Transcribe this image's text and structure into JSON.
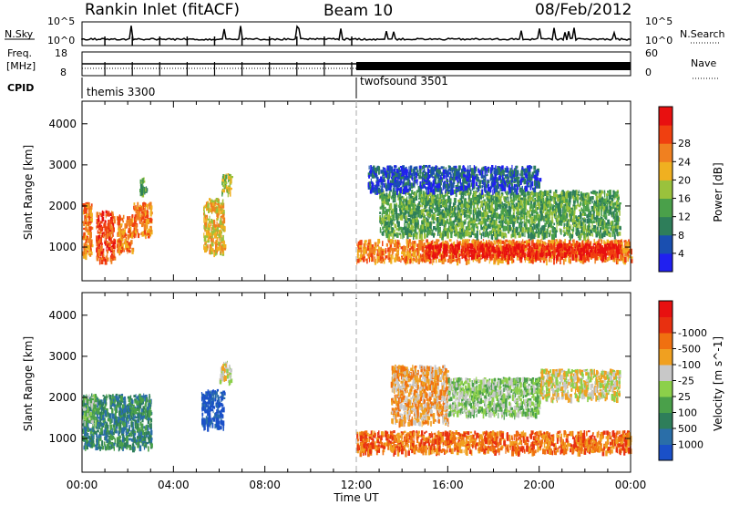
{
  "header": {
    "title": "Rankin Inlet (fitACF)",
    "beam": "Beam 10",
    "date": "08/Feb/2012"
  },
  "top_panels": {
    "nsky_label": "N.Sky",
    "nsearch_label": "N.Search",
    "nsky_ticks": [
      "10^5",
      "10^0"
    ],
    "nsearch_ticks": [
      "10^5",
      "10^0"
    ],
    "freq_label_1": "Freq.",
    "freq_label_2": "[MHz]",
    "freq_ticks": [
      "18",
      "8"
    ],
    "nave_label": "Nave",
    "nave_ticks": [
      "60",
      "0"
    ],
    "cpid_label": "CPID",
    "cpid_segments": [
      {
        "name": "themis 3300",
        "start_hour": 0,
        "end_hour": 12
      },
      {
        "name": "twofsound 3501",
        "start_hour": 12,
        "end_hour": 24
      }
    ]
  },
  "chart_data": [
    {
      "type": "heatmap",
      "title": "",
      "quantity": "Power",
      "ylabel": "Slant Range [km]",
      "xlabel": "",
      "ylim": [
        180,
        4550
      ],
      "xlim": [
        0,
        24
      ],
      "yticks": [
        1000,
        2000,
        3000,
        4000
      ],
      "colorbar": {
        "label": "Power [dB]",
        "ticks": [
          "4",
          "8",
          "12",
          "16",
          "20",
          "24",
          "28"
        ],
        "colors": [
          "#2020f0",
          "#1a4fb0",
          "#2e7e5a",
          "#4aa04a",
          "#9ac23c",
          "#f0b020",
          "#f08020",
          "#f04010",
          "#e81010"
        ]
      },
      "regions": [
        {
          "x": [
            0.0,
            0.4
          ],
          "y": [
            800,
            2100
          ],
          "level": 6
        },
        {
          "x": [
            0.6,
            1.4
          ],
          "y": [
            700,
            1900
          ],
          "level": 7
        },
        {
          "x": [
            1.5,
            2.2
          ],
          "y": [
            900,
            1800
          ],
          "level": 6
        },
        {
          "x": [
            2.2,
            3.0
          ],
          "y": [
            1300,
            2100
          ],
          "level": 6
        },
        {
          "x": [
            2.5,
            2.8
          ],
          "y": [
            2300,
            2700
          ],
          "level": 3
        },
        {
          "x": [
            5.3,
            6.2
          ],
          "y": [
            900,
            2200
          ],
          "level": 5
        },
        {
          "x": [
            6.1,
            6.5
          ],
          "y": [
            2300,
            2800
          ],
          "level": 4
        },
        {
          "x": [
            12.0,
            24.0
          ],
          "y": [
            700,
            1200
          ],
          "level": 6
        },
        {
          "x": [
            15.0,
            23.5
          ],
          "y": [
            800,
            1100
          ],
          "level": 8
        },
        {
          "x": [
            13.0,
            23.5
          ],
          "y": [
            1300,
            2400
          ],
          "level": 3
        },
        {
          "x": [
            12.5,
            20.0
          ],
          "y": [
            2400,
            3000
          ],
          "level": 1
        }
      ]
    },
    {
      "type": "heatmap",
      "title": "",
      "quantity": "Velocity",
      "ylabel": "Slant Range [km]",
      "xlabel": "Time UT",
      "ylim": [
        180,
        4550
      ],
      "xlim": [
        0,
        24
      ],
      "yticks": [
        1000,
        2000,
        3000,
        4000
      ],
      "xticks": [
        "00:00",
        "04:00",
        "08:00",
        "12:00",
        "16:00",
        "20:00",
        "00:00"
      ],
      "colorbar": {
        "label": "Velocity [m s^-1]",
        "ticks": [
          "1000",
          "500",
          "100",
          "25",
          "-25",
          "-100",
          "-500",
          "-1000"
        ],
        "colors": [
          "#1a50c8",
          "#2a6ea8",
          "#2e7e5a",
          "#4aa04a",
          "#8cd04a",
          "#c8c8c8",
          "#f0a020",
          "#f07010",
          "#e83010",
          "#e81010"
        ]
      },
      "regions": [
        {
          "x": [
            0.0,
            3.0
          ],
          "y": [
            800,
            2100
          ],
          "level": 2
        },
        {
          "x": [
            0.0,
            0.6
          ],
          "y": [
            1400,
            2100
          ],
          "level": 4
        },
        {
          "x": [
            5.2,
            6.2
          ],
          "y": [
            1300,
            2200
          ],
          "level": 0
        },
        {
          "x": [
            6.0,
            6.5
          ],
          "y": [
            2400,
            2900
          ],
          "level": 5
        },
        {
          "x": [
            12.0,
            24.0
          ],
          "y": [
            700,
            1200
          ],
          "level": 7
        },
        {
          "x": [
            13.5,
            16.0
          ],
          "y": [
            1400,
            2800
          ],
          "level": 6
        },
        {
          "x": [
            16.0,
            20.0
          ],
          "y": [
            1600,
            2500
          ],
          "level": 4
        },
        {
          "x": [
            20.0,
            23.5
          ],
          "y": [
            2000,
            2700
          ],
          "level": 5
        }
      ]
    }
  ]
}
